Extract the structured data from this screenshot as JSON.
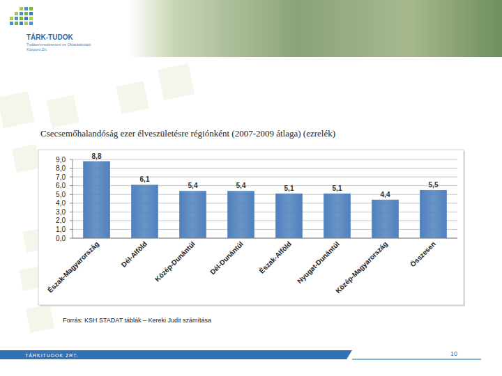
{
  "logo": {
    "name": "TÁRK-TUDOK",
    "line1": "Tudásmenedzsment és Oktatáskutató",
    "line2": "Központ Zrt."
  },
  "chart_data": {
    "type": "bar",
    "title": "Csecsemőhalandóság ezer élveszületésre régiónként (2007-2009 átlaga) (ezrelék)",
    "categories": [
      "Észak-Magyarország",
      "Dél-Alföld",
      "Közép-Dunántúl",
      "Dél-Dunántúl",
      "Észak-Alföld",
      "Nyugat-Dunántúl",
      "Közép-Magyarország",
      "Összesen"
    ],
    "values": [
      8.8,
      6.1,
      5.4,
      5.4,
      5.1,
      5.1,
      4.4,
      5.5
    ],
    "value_labels": [
      "8,8",
      "6,1",
      "5,4",
      "5,4",
      "5,1",
      "5,1",
      "4,4",
      "5,5"
    ],
    "color": "#4f81bd",
    "ylim": [
      0,
      9
    ],
    "yticks": [
      {
        "value": 0,
        "label": "0,0"
      },
      {
        "value": 1,
        "label": "1,0"
      },
      {
        "value": 2,
        "label": "2,0"
      },
      {
        "value": 3,
        "label": "3,0"
      },
      {
        "value": 4,
        "label": "4,0"
      },
      {
        "value": 5,
        "label": "5,0"
      },
      {
        "value": 6,
        "label": "6,0"
      },
      {
        "value": 7,
        "label": "7,0"
      },
      {
        "value": 8,
        "label": "8,0"
      },
      {
        "value": 9,
        "label": "9,0"
      }
    ],
    "grid": true,
    "data_labels": true
  },
  "source": "Forrás: KSH STADAT táblák – Kereki Judit számítása",
  "footer": "TÁRKITUDOK ZRT.",
  "page_number": "10"
}
